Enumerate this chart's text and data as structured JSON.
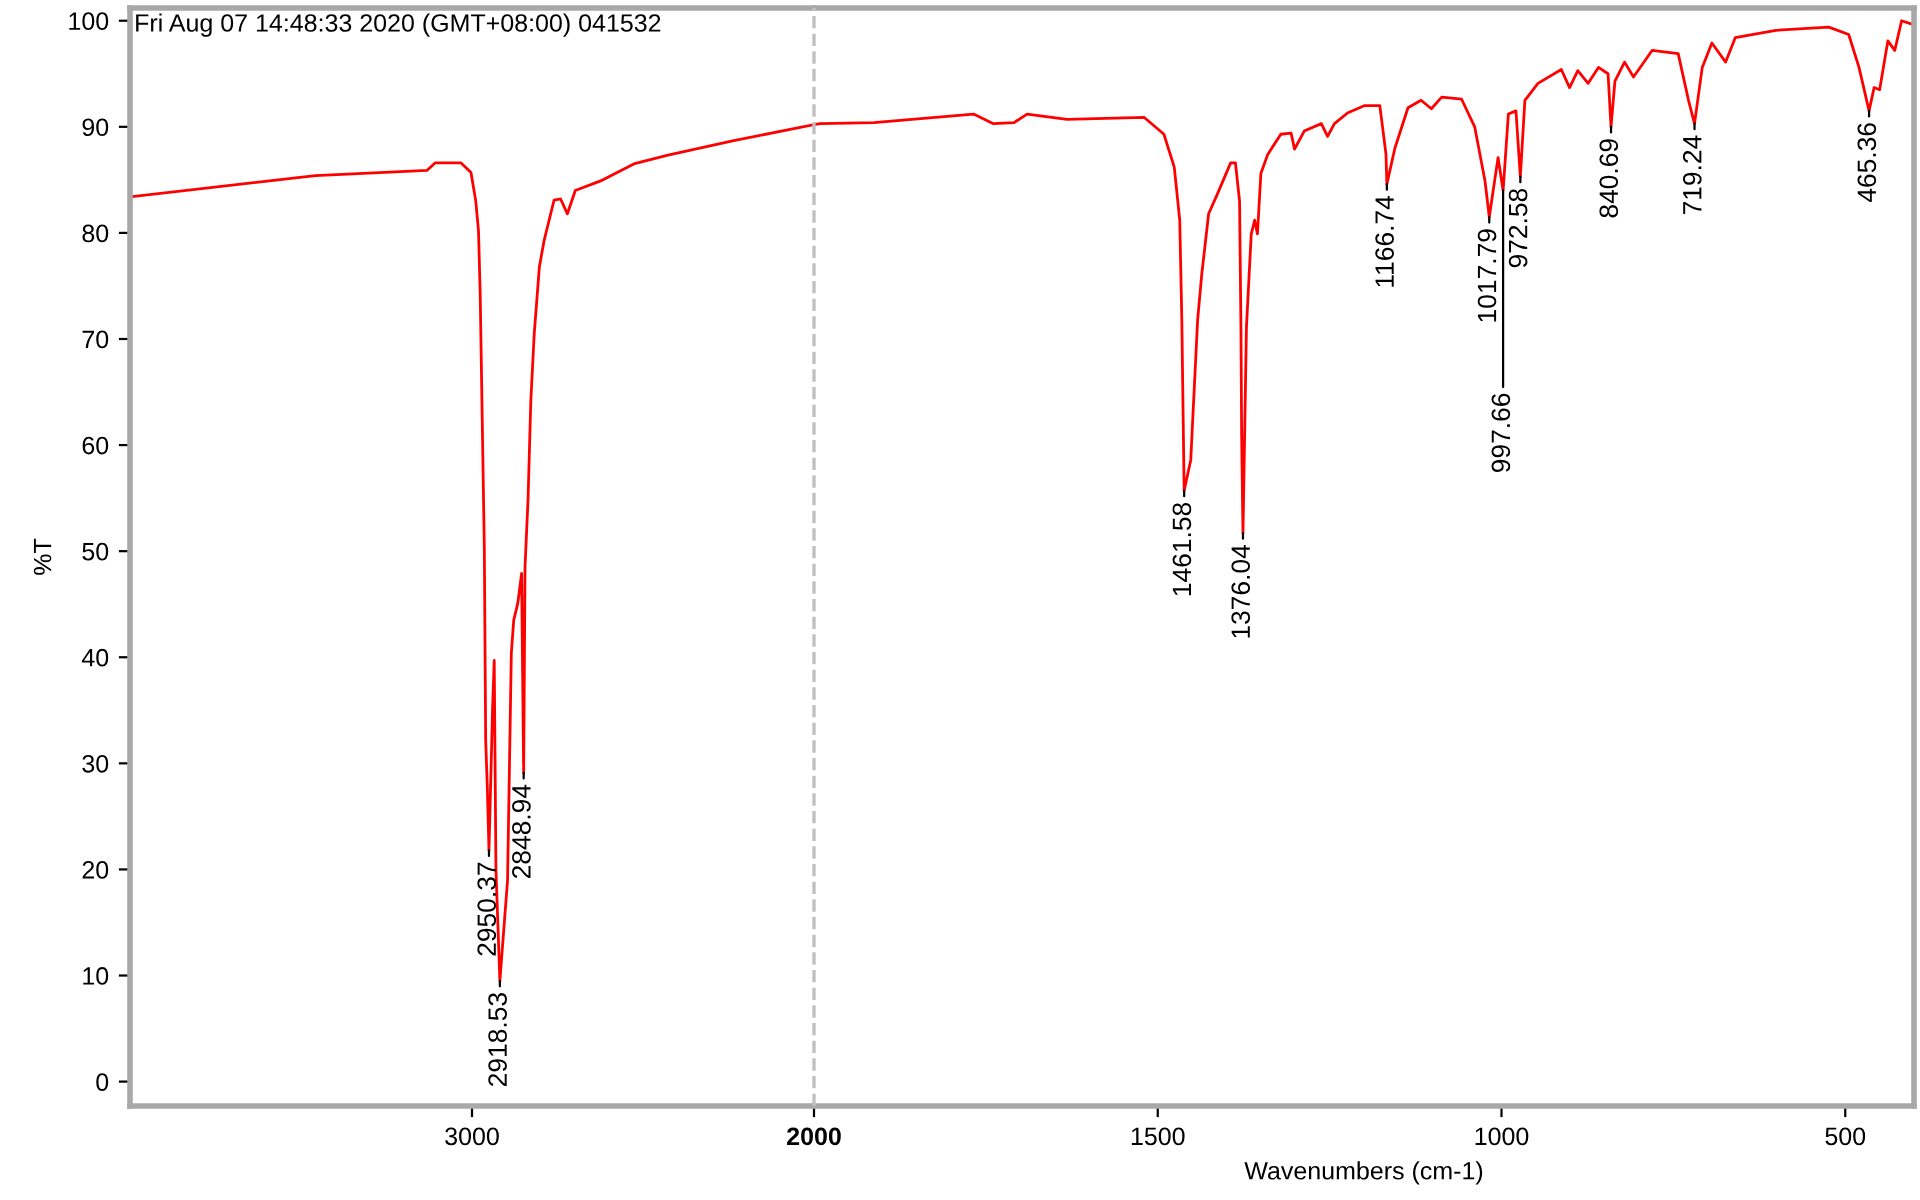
{
  "chart_data": [
    {
      "type": "line",
      "ylabel": "%T",
      "xlim": [
        4000,
        2000
      ],
      "ylim": [
        -2.3,
        101.2
      ],
      "xticks": [
        3000,
        2000
      ],
      "yticks": [
        0,
        10,
        20,
        30,
        40,
        50,
        60,
        70,
        80,
        90,
        100
      ],
      "grid": false,
      "marker": "none",
      "line_style": "solid",
      "series": [
        {
          "color": "#ff0000",
          "x": [
            4000,
            3458,
            3131,
            3108,
            3032,
            3003,
            2989,
            2981,
            2976,
            2970,
            2964,
            2960,
            2955,
            2950.37,
            2940,
            2935,
            2930,
            2918.53,
            2896,
            2885,
            2878,
            2866,
            2855,
            2848.94,
            2845,
            2836,
            2828,
            2818,
            2803,
            2789,
            2760,
            2741,
            2721,
            2698,
            2624,
            2527,
            2430,
            2235,
            2000
          ],
          "values": [
            83.4,
            85.4,
            85.9,
            86.6,
            86.6,
            85.7,
            83.0,
            80.2,
            74.2,
            62.3,
            50.4,
            32.2,
            27.5,
            21.8,
            35,
            39.7,
            20,
            9.5,
            19.0,
            40.4,
            43.5,
            45.1,
            47.9,
            29.1,
            48.5,
            55,
            64.2,
            70.5,
            76.8,
            79.3,
            83.1,
            83.2,
            81.8,
            84.0,
            84.9,
            86.5,
            87.3,
            88.7,
            90.2
          ]
        }
      ],
      "annotations": [
        "Fri Aug 07 14:48:33 2020 (GMT+08:00) 041532",
        {
          "text": "2950.37",
          "x": 2950.37,
          "y": 21.8
        },
        {
          "text": "2918.53",
          "x": 2918.53,
          "y": 9.5
        },
        {
          "text": "2848.94",
          "x": 2848.94,
          "y": 29.1
        }
      ]
    },
    {
      "type": "line",
      "xlabel": "Wavenumbers (cm-1)",
      "xlim": [
        2000,
        400
      ],
      "ylim": [
        -2.3,
        101.2
      ],
      "xticks": [
        1500,
        1000,
        500
      ],
      "yticks": [
        0,
        10,
        20,
        30,
        40,
        50,
        60,
        70,
        80,
        90,
        100
      ],
      "tick_labels": "x",
      "grid": false,
      "marker": "none",
      "line_style": "solid",
      "ref_lines": [
        {
          "axis": "x",
          "value": 2000,
          "label": null,
          "color": "#c0c0c0",
          "line_style": "dashed"
        }
      ],
      "series": [
        {
          "color": "#ff0000",
          "x": [
            2000,
            1991,
            1913,
            1768,
            1739,
            1709,
            1690,
            1632,
            1520,
            1491,
            1476,
            1468,
            1465,
            1461.58,
            1452,
            1442,
            1436,
            1426,
            1413,
            1394,
            1387,
            1381,
            1379,
            1378,
            1376.04,
            1371,
            1364,
            1359,
            1355,
            1350,
            1340,
            1321,
            1306,
            1301,
            1287,
            1262,
            1253,
            1243,
            1224,
            1199,
            1177,
            1168,
            1166.74,
            1155,
            1136,
            1117,
            1102,
            1087,
            1058,
            1039,
            1024,
            1017.79,
            1005,
            997.66,
            990,
            979,
            972.58,
            966,
            947,
            913,
            901,
            889,
            874,
            859,
            845,
            840.69,
            835,
            821,
            808,
            781,
            743,
            728,
            719.24,
            708,
            694,
            674,
            660,
            601,
            524,
            495,
            480,
            465.36,
            458,
            450,
            438,
            428,
            418,
            404
          ],
          "values": [
            90.2,
            90.3,
            90.4,
            91.2,
            90.3,
            90.4,
            91.2,
            90.7,
            90.9,
            89.3,
            86.2,
            81.2,
            71.8,
            55.7,
            58.6,
            71.8,
            76.1,
            81.8,
            83.7,
            86.6,
            86.6,
            83.0,
            71.1,
            61.1,
            51.7,
            71.1,
            79.9,
            81.2,
            79.9,
            85.6,
            87.4,
            89.3,
            89.4,
            87.9,
            89.6,
            90.3,
            89.1,
            90.3,
            91.3,
            92.0,
            92.0,
            87.4,
            84.6,
            88.0,
            91.8,
            92.5,
            91.7,
            92.8,
            92.6,
            90.0,
            84.9,
            81.5,
            87.1,
            84.0,
            91.2,
            91.5,
            85.3,
            92.5,
            94.1,
            95.4,
            93.7,
            95.3,
            94.1,
            95.6,
            95.0,
            90.0,
            94.3,
            96.1,
            94.7,
            97.2,
            96.9,
            92.5,
            90.3,
            95.6,
            97.9,
            96.1,
            98.4,
            99.1,
            99.4,
            98.7,
            95.6,
            91.5,
            93.7,
            93.5,
            98.1,
            97.2,
            100.0,
            99.7
          ]
        }
      ],
      "annotations": [
        {
          "text": "1461.58",
          "x": 1461.58,
          "y": 55.7
        },
        {
          "text": "1376.04",
          "x": 1376.04,
          "y": 51.7
        },
        {
          "text": "1166.74",
          "x": 1166.74,
          "y": 84.6
        },
        {
          "text": "1017.79",
          "x": 1017.79,
          "y": 81.5
        },
        {
          "text": "997.66",
          "x": 997.66,
          "y": 84.0
        },
        {
          "text": "972.58",
          "x": 972.58,
          "y": 85.3
        },
        {
          "text": "840.69",
          "x": 840.69,
          "y": 90.0
        },
        {
          "text": "719.24",
          "x": 719.24,
          "y": 90.3
        },
        {
          "text": "465.36",
          "x": 465.36,
          "y": 91.5
        }
      ]
    }
  ]
}
